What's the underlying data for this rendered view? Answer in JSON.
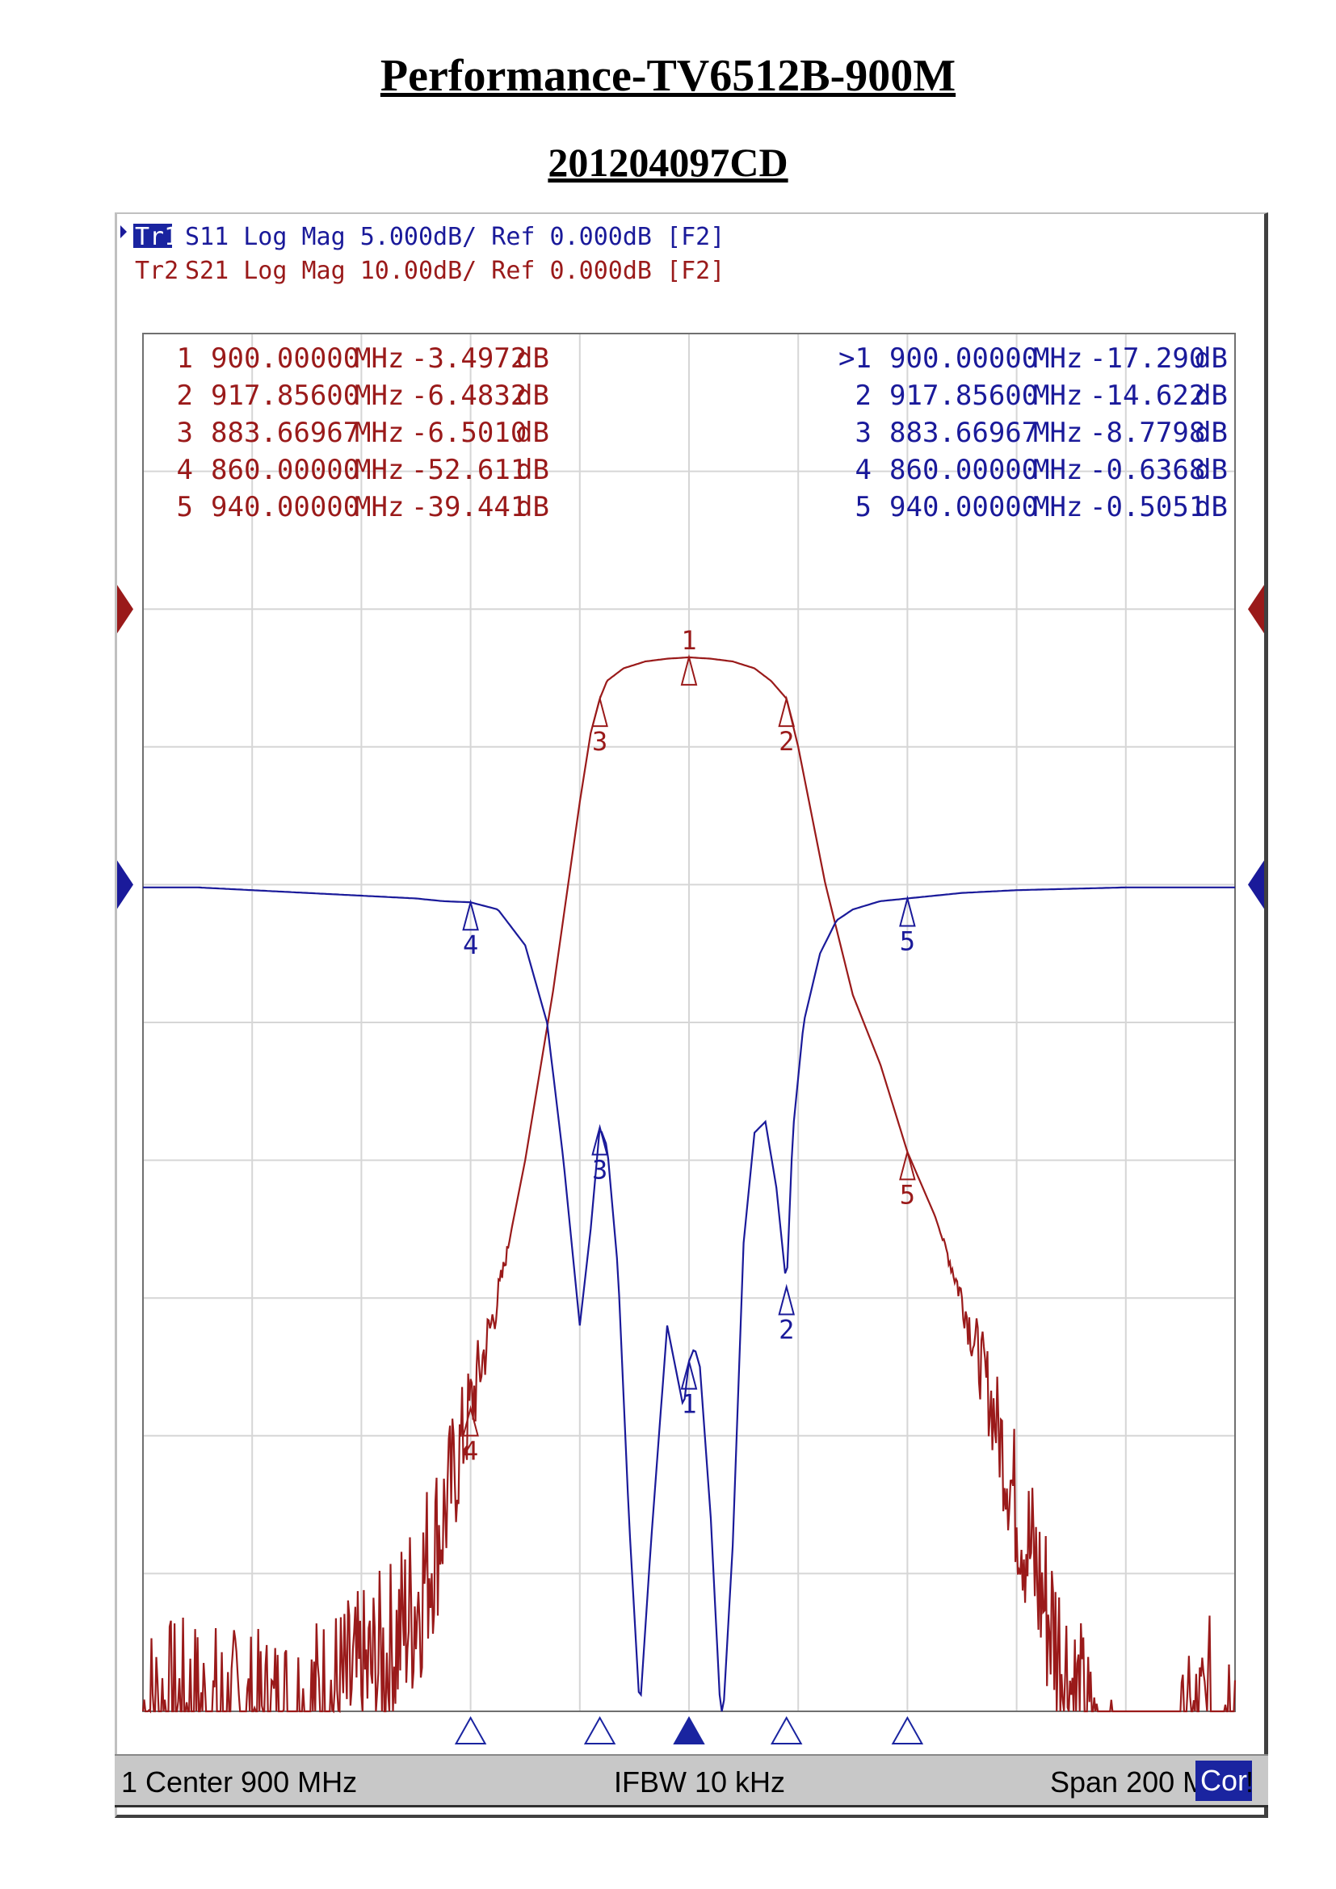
{
  "document": {
    "title": "Performance-TV6512B-900M",
    "subtitle": "201204097CD"
  },
  "traces": {
    "tr1": {
      "id": "Tr1",
      "header": "S11 Log Mag 5.000dB/ Ref 0.000dB [F2]",
      "color": "#1a1a9a"
    },
    "tr2": {
      "id": "Tr2",
      "header": "S21 Log Mag 10.00dB/ Ref 0.000dB [F2]",
      "color": "#9a1a1a"
    }
  },
  "markers_tr2": [
    {
      "n": "1",
      "freq": "900.00000",
      "unit": "MHz",
      "value": "-3.4972",
      "vunit": "dB"
    },
    {
      "n": "2",
      "freq": "917.85600",
      "unit": "MHz",
      "value": "-6.4832",
      "vunit": "dB"
    },
    {
      "n": "3",
      "freq": "883.66967",
      "unit": "MHz",
      "value": "-6.5010",
      "vunit": "dB"
    },
    {
      "n": "4",
      "freq": "860.00000",
      "unit": "MHz",
      "value": "-52.611",
      "vunit": "dB"
    },
    {
      "n": "5",
      "freq": "940.00000",
      "unit": "MHz",
      "value": "-39.441",
      "vunit": "dB"
    }
  ],
  "markers_tr1": [
    {
      "n": ">1",
      "freq": "900.00000",
      "unit": "MHz",
      "value": "-17.290",
      "vunit": "dB"
    },
    {
      "n": "2",
      "freq": "917.85600",
      "unit": "MHz",
      "value": "-14.622",
      "vunit": "dB"
    },
    {
      "n": "3",
      "freq": "883.66967",
      "unit": "MHz",
      "value": "-8.7798",
      "vunit": "dB"
    },
    {
      "n": "4",
      "freq": "860.00000",
      "unit": "MHz",
      "value": "-0.6368",
      "vunit": "dB"
    },
    {
      "n": "5",
      "freq": "940.00000",
      "unit": "MHz",
      "value": "-0.5051",
      "vunit": "dB"
    }
  ],
  "status": {
    "channel": "1",
    "center": "Center 900 MHz",
    "ifbw": "IFBW 10 kHz",
    "span": "Span 200 MHz",
    "cor": "Cor",
    "excl": "!"
  },
  "chart_data": {
    "type": "line",
    "x_range": [
      800,
      1000
    ],
    "x_unit": "MHz",
    "grid": true,
    "grid_divisions": {
      "x": 10,
      "y": 10
    },
    "series": [
      {
        "trace": "Tr2",
        "name": "S21",
        "scale_db_per_div": 10,
        "ref_db": 0,
        "ref_position_div": 8,
        "color": "#9a1a1a",
        "x": [
          800,
          810,
          820,
          830,
          840,
          845,
          850,
          855,
          860,
          865,
          870,
          875,
          880,
          882,
          883.67,
          885,
          888,
          892,
          896,
          900,
          904,
          908,
          912,
          915,
          917.856,
          920,
          925,
          930,
          935,
          940,
          945,
          950,
          955,
          960,
          965,
          970,
          975,
          980,
          985,
          990,
          995,
          1000
        ],
        "y": [
          -80,
          -80,
          -81,
          -80,
          -78,
          -76,
          -72,
          -66,
          -58,
          -50,
          -40,
          -28,
          -14,
          -9,
          -6.5,
          -5.2,
          -4.3,
          -3.8,
          -3.6,
          -3.5,
          -3.6,
          -3.8,
          -4.3,
          -5.2,
          -6.5,
          -10,
          -20,
          -28,
          -33,
          -39.4,
          -44,
          -50,
          -57,
          -65,
          -72,
          -78,
          -84,
          -88,
          -90,
          -84,
          -80,
          -79
        ],
        "noise_floor": true
      },
      {
        "trace": "Tr1",
        "name": "S11",
        "scale_db_per_div": 5,
        "ref_db": 0,
        "ref_position_div": 6,
        "color": "#1a1a9a",
        "x": [
          800,
          810,
          820,
          830,
          840,
          850,
          855,
          860,
          865,
          870,
          874,
          877,
          880,
          882,
          883.67,
          885,
          887,
          889,
          891,
          893,
          896,
          899,
          900,
          901,
          902,
          904,
          906,
          908,
          910,
          912,
          914,
          916,
          917.856,
          919,
          921,
          924,
          927,
          930,
          935,
          940,
          950,
          960,
          980,
          1000
        ],
        "y": [
          -0.1,
          -0.1,
          -0.2,
          -0.3,
          -0.4,
          -0.5,
          -0.6,
          -0.64,
          -0.9,
          -2.2,
          -5,
          -10,
          -16,
          -12.5,
          -8.8,
          -9.5,
          -14,
          -23,
          -30,
          -24,
          -16,
          -19,
          -17.3,
          -16.8,
          -17.5,
          -23,
          -31,
          -24,
          -13,
          -9,
          -8.6,
          -11,
          -14.6,
          -9,
          -5,
          -2.5,
          -1.3,
          -0.9,
          -0.6,
          -0.5,
          -0.3,
          -0.2,
          -0.1,
          -0.1
        ]
      }
    ],
    "stimulus_markers_x": [
      860,
      883.67,
      900,
      917.856,
      940
    ],
    "active_marker": "1"
  }
}
